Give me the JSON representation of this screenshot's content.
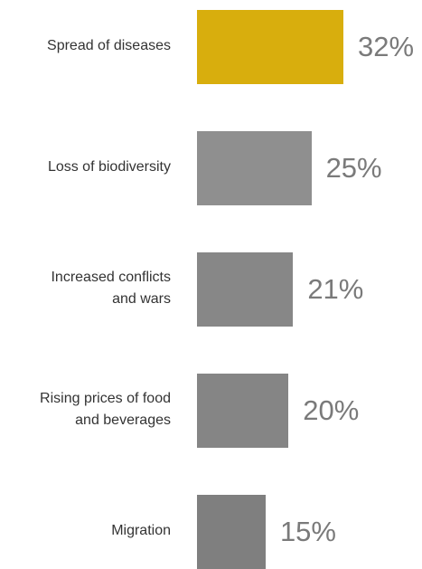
{
  "chart_data": {
    "type": "bar",
    "orientation": "horizontal",
    "categories": [
      [
        "Spread of diseases"
      ],
      [
        "Loss of biodiversity"
      ],
      [
        "Increased conflicts",
        "and wars"
      ],
      [
        "Rising prices of food",
        "and beverages"
      ],
      [
        "Migration"
      ]
    ],
    "values": [
      32,
      25,
      21,
      20,
      15
    ],
    "value_labels": [
      "32%",
      "25%",
      "21%",
      "20%",
      "15%"
    ],
    "colors": [
      "#d8ae0d",
      "#8f8f8f",
      "#878787",
      "#858585",
      "#7f7f7f"
    ],
    "value_text_color": "#7a7a7a",
    "title": "",
    "xlabel": "",
    "ylabel": "",
    "grid": false,
    "legend": "none"
  }
}
